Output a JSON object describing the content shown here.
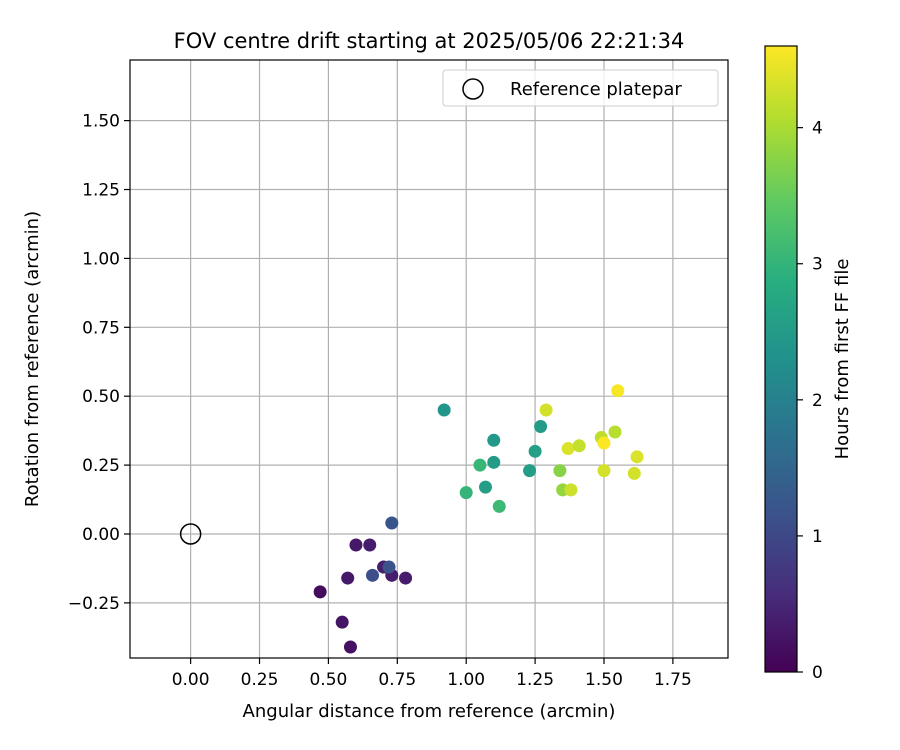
{
  "chart_data": {
    "type": "scatter",
    "title": "FOV centre drift starting at 2025/05/06 22:21:34",
    "xlabel": "Angular distance from reference (arcmin)",
    "ylabel": "Rotation from reference (arcmin)",
    "xlim": [
      -0.22,
      1.95
    ],
    "ylim": [
      -0.45,
      1.72
    ],
    "xticks": [
      "0.00",
      "0.25",
      "0.50",
      "0.75",
      "1.00",
      "1.25",
      "1.50",
      "1.75"
    ],
    "yticks": [
      "−0.25",
      "0.00",
      "0.25",
      "0.50",
      "0.75",
      "1.00",
      "1.25",
      "1.50"
    ],
    "grid": true,
    "legend": {
      "placement": "top-right",
      "entries": [
        {
          "label": "Reference platepar",
          "marker": "open-circle"
        }
      ]
    },
    "reference": {
      "x": 0.0,
      "y": 0.0
    },
    "colorbar": {
      "label": "Hours from first FF file",
      "colormap": "viridis",
      "range": [
        0,
        4.6
      ],
      "ticks": [
        "0",
        "1",
        "2",
        "3",
        "4"
      ]
    },
    "points": [
      {
        "x": 0.58,
        "y": -0.41,
        "c": 0.2
      },
      {
        "x": 0.55,
        "y": -0.32,
        "c": 0.25
      },
      {
        "x": 0.47,
        "y": -0.21,
        "c": 0.15
      },
      {
        "x": 0.57,
        "y": -0.16,
        "c": 0.3
      },
      {
        "x": 0.6,
        "y": -0.04,
        "c": 0.3
      },
      {
        "x": 0.65,
        "y": -0.04,
        "c": 0.35
      },
      {
        "x": 0.7,
        "y": -0.12,
        "c": 0.4
      },
      {
        "x": 0.73,
        "y": -0.15,
        "c": 0.35
      },
      {
        "x": 0.78,
        "y": -0.16,
        "c": 0.35
      },
      {
        "x": 0.66,
        "y": -0.15,
        "c": 1.1
      },
      {
        "x": 0.72,
        "y": -0.12,
        "c": 1.15
      },
      {
        "x": 0.73,
        "y": 0.04,
        "c": 1.2
      },
      {
        "x": 0.92,
        "y": 0.45,
        "c": 2.4
      },
      {
        "x": 1.0,
        "y": 0.15,
        "c": 3.0
      },
      {
        "x": 1.05,
        "y": 0.25,
        "c": 3.05
      },
      {
        "x": 1.07,
        "y": 0.17,
        "c": 2.55
      },
      {
        "x": 1.1,
        "y": 0.34,
        "c": 2.45
      },
      {
        "x": 1.1,
        "y": 0.26,
        "c": 2.5
      },
      {
        "x": 1.12,
        "y": 0.1,
        "c": 3.1
      },
      {
        "x": 1.23,
        "y": 0.23,
        "c": 2.55
      },
      {
        "x": 1.25,
        "y": 0.3,
        "c": 2.6
      },
      {
        "x": 1.27,
        "y": 0.39,
        "c": 2.5
      },
      {
        "x": 1.29,
        "y": 0.45,
        "c": 4.3
      },
      {
        "x": 1.34,
        "y": 0.23,
        "c": 3.75
      },
      {
        "x": 1.35,
        "y": 0.16,
        "c": 3.85
      },
      {
        "x": 1.37,
        "y": 0.31,
        "c": 4.35
      },
      {
        "x": 1.38,
        "y": 0.16,
        "c": 4.25
      },
      {
        "x": 1.41,
        "y": 0.32,
        "c": 4.2
      },
      {
        "x": 1.49,
        "y": 0.35,
        "c": 4.15
      },
      {
        "x": 1.5,
        "y": 0.33,
        "c": 4.6
      },
      {
        "x": 1.5,
        "y": 0.23,
        "c": 4.3
      },
      {
        "x": 1.54,
        "y": 0.37,
        "c": 4.1
      },
      {
        "x": 1.55,
        "y": 0.52,
        "c": 4.55
      },
      {
        "x": 1.61,
        "y": 0.22,
        "c": 4.3
      },
      {
        "x": 1.62,
        "y": 0.28,
        "c": 4.35
      }
    ]
  }
}
